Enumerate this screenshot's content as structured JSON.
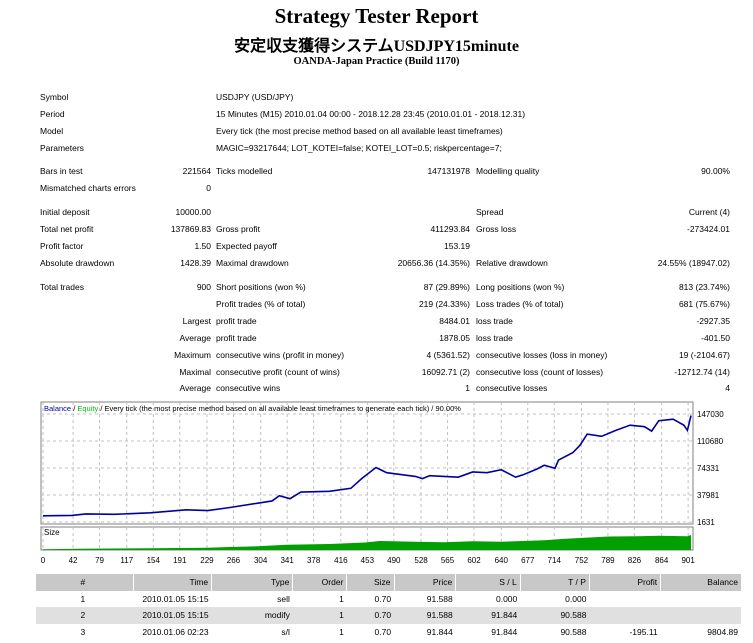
{
  "header": {
    "title": "Strategy Tester Report",
    "subtitle": "安定収支獲得システムUSDJPY15minute",
    "build": "OANDA-Japan Practice (Build 1170)"
  },
  "stats": [
    {
      "c1": "Symbol",
      "wide": "USDJPY (USD/JPY)"
    },
    {
      "c1": "Period",
      "wide": "15 Minutes (M15) 2010.01.04 00:00 - 2018.12.28 23:45 (2010.01.01 - 2018.12.31)"
    },
    {
      "c1": "Model",
      "wide": "Every tick (the most precise method based on all available least timeframes)"
    },
    {
      "c1": "Parameters",
      "wide": "MAGIC=93217644; LOT_KOTEI=false; KOTEI_LOT=0.5; riskpercentage=7;"
    },
    {
      "c1": "Bars in test",
      "c2": "221564",
      "c3": "Ticks modelled",
      "c4": "147131978",
      "c5": "Modelling quality",
      "c6": "90.00%"
    },
    {
      "c1": "Mismatched charts errors",
      "c2": "0"
    },
    {
      "c1": "Initial deposit",
      "c2": "10000.00",
      "c5": "Spread",
      "c6": "Current (4)"
    },
    {
      "c1": "Total net profit",
      "c2": "137869.83",
      "c3": "Gross profit",
      "c4": "411293.84",
      "c5": "Gross loss",
      "c6": "-273424.01"
    },
    {
      "c1": "Profit factor",
      "c2": "1.50",
      "c3": "Expected payoff",
      "c4": "153.19"
    },
    {
      "c1": "Absolute drawdown",
      "c2": "1428.39",
      "c3": "Maximal drawdown",
      "c4": "20656.36 (14.35%)",
      "c5": "Relative drawdown",
      "c6": "24.55% (18947.02)"
    },
    {
      "c1": "Total trades",
      "c2": "900",
      "c3": "Short positions (won %)",
      "c4": "87 (29.89%)",
      "c5": "Long positions (won %)",
      "c6": "813 (23.74%)"
    },
    {
      "c3": "Profit trades (% of total)",
      "c4": "219 (24.33%)",
      "c5": "Loss trades (% of total)",
      "c6": "681 (75.67%)"
    },
    {
      "c2": "Largest",
      "c3": "profit trade",
      "c4": "8484.01",
      "c5": "loss trade",
      "c6": "-2927.35"
    },
    {
      "c2": "Average",
      "c3": "profit trade",
      "c4": "1878.05",
      "c5": "loss trade",
      "c6": "-401.50"
    },
    {
      "c2": "Maximum",
      "c3": "consecutive wins (profit in money)",
      "c4": "4 (5361.52)",
      "c5": "consecutive losses (loss in money)",
      "c6": "19 (-2104.67)"
    },
    {
      "c2": "Maximal",
      "c3": "consecutive profit (count of wins)",
      "c4": "16092.71 (2)",
      "c5": "consecutive loss (count of losses)",
      "c6": "-12712.74 (14)"
    },
    {
      "c2": "Average",
      "c3": "consecutive wins",
      "c4": "1",
      "c5": "consecutive losses",
      "c6": "4"
    }
  ],
  "chart_data": {
    "type": "line",
    "legend": {
      "balance": "Balance",
      "sep1": " / ",
      "equity": "Equity",
      "rest": " / Every tick (the most precise method based on all available least timeframes to generate each tick) / 90.00%"
    },
    "colors": {
      "balance": "#0000a0",
      "equity": "#00c000",
      "size": "#00a000",
      "grid": "#c0c0c0"
    },
    "yticks": [
      "147030",
      "110680",
      "74331",
      "37981",
      "1631"
    ],
    "ylim": [
      1631,
      147030
    ],
    "xlim": [
      0,
      905
    ],
    "xticks": [
      "0",
      "42",
      "79",
      "117",
      "154",
      "191",
      "229",
      "266",
      "304",
      "341",
      "378",
      "416",
      "453",
      "490",
      "528",
      "565",
      "602",
      "640",
      "677",
      "714",
      "752",
      "789",
      "826",
      "864",
      "901"
    ],
    "size_label": "Size",
    "balance": {
      "x": [
        0,
        40,
        60,
        100,
        150,
        200,
        230,
        260,
        300,
        320,
        330,
        345,
        360,
        400,
        430,
        445,
        465,
        480,
        520,
        530,
        540,
        580,
        600,
        620,
        640,
        660,
        670,
        690,
        700,
        715,
        720,
        740,
        750,
        760,
        780,
        800,
        820,
        840,
        850,
        860,
        880,
        895,
        900,
        905
      ],
      "y": [
        10000,
        10500,
        12500,
        12000,
        14000,
        18000,
        17000,
        21000,
        27000,
        30000,
        37000,
        33000,
        42000,
        43000,
        47000,
        60000,
        75000,
        68000,
        63000,
        60000,
        64000,
        62000,
        69000,
        68000,
        72000,
        62000,
        65000,
        73000,
        78000,
        74000,
        85000,
        95000,
        105000,
        120000,
        117000,
        125000,
        132000,
        130000,
        124000,
        138000,
        140000,
        132000,
        125000,
        145000
      ]
    },
    "size": {
      "x": [
        0,
        50,
        150,
        230,
        260,
        300,
        340,
        400,
        450,
        470,
        520,
        560,
        600,
        640,
        700,
        730,
        750,
        790,
        830,
        860,
        900,
        905
      ],
      "y": [
        0.05,
        0.08,
        0.12,
        0.15,
        0.2,
        0.25,
        0.35,
        0.4,
        0.5,
        0.6,
        0.55,
        0.52,
        0.58,
        0.55,
        0.65,
        0.75,
        0.8,
        0.9,
        0.92,
        0.95,
        0.92,
        1.0
      ]
    }
  },
  "trades": {
    "headers": [
      "#",
      "Time",
      "Type",
      "Order",
      "Size",
      "Price",
      "S / L",
      "T / P",
      "Profit",
      "Balance"
    ],
    "rows": [
      [
        "1",
        "2010.01.05 15:15",
        "sell",
        "1",
        "0.70",
        "91.588",
        "0.000",
        "0.000",
        "",
        ""
      ],
      [
        "2",
        "2010.01.05 15:15",
        "modify",
        "1",
        "0.70",
        "91.588",
        "91.844",
        "90.588",
        "",
        ""
      ],
      [
        "3",
        "2010.01.06 02:23",
        "s/l",
        "1",
        "0.70",
        "91.844",
        "91.844",
        "90.588",
        "-195.11",
        "9804.89"
      ]
    ]
  }
}
